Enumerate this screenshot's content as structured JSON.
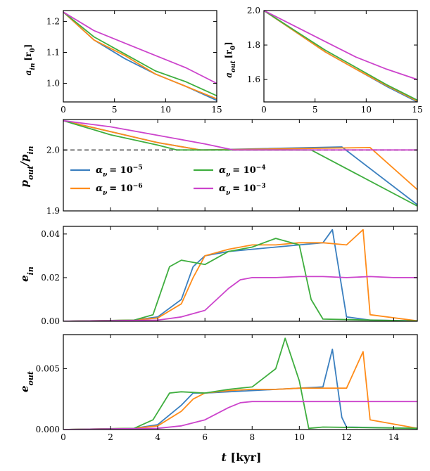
{
  "colors": {
    "a5": "#3a7fbf",
    "a6": "#ff8c1a",
    "a4": "#3fae3f",
    "a3": "#cc44cc",
    "ref": "#777777"
  },
  "chart_data": [
    {
      "id": "p1",
      "type": "line",
      "ylabel": "a_in [r_0]",
      "ylabel_main": "a",
      "ylabel_sub": "in",
      "ylabel_unit": "[r",
      "xlim": [
        0,
        15
      ],
      "ylim": [
        0.94,
        1.235
      ],
      "xticks": [
        "0",
        "5",
        "10",
        "15"
      ],
      "yticks": [
        "1.2",
        "1.1",
        "1.0"
      ],
      "series": [
        {
          "name": "α=1e-5",
          "color": "a5",
          "x": [
            0,
            3,
            6,
            9,
            12,
            15
          ],
          "y": [
            1.23,
            1.14,
            1.08,
            1.03,
            0.99,
            0.945
          ]
        },
        {
          "name": "α=1e-6",
          "color": "a6",
          "x": [
            0,
            3,
            6,
            9,
            12,
            15
          ],
          "y": [
            1.23,
            1.14,
            1.09,
            1.03,
            0.99,
            0.95
          ]
        },
        {
          "name": "α=1e-4",
          "color": "a4",
          "x": [
            0,
            3,
            6,
            9,
            12,
            15
          ],
          "y": [
            1.23,
            1.15,
            1.095,
            1.04,
            1.005,
            0.96
          ]
        },
        {
          "name": "α=1e-3",
          "color": "a3",
          "x": [
            0,
            3,
            6,
            9,
            12,
            15
          ],
          "y": [
            1.23,
            1.17,
            1.13,
            1.09,
            1.05,
            1.0
          ]
        }
      ]
    },
    {
      "id": "p2",
      "type": "line",
      "ylabel": "a_out [r_0]",
      "ylabel_main": "a",
      "ylabel_sub": "out",
      "ylabel_unit": "[r",
      "xlim": [
        0,
        15
      ],
      "ylim": [
        1.47,
        2.0
      ],
      "xticks": [
        "0",
        "5",
        "10",
        "15"
      ],
      "yticks": [
        "2.0",
        "1.8",
        "1.6"
      ],
      "series": [
        {
          "name": "α=1e-5",
          "color": "a5",
          "x": [
            0,
            3,
            6,
            9,
            12,
            15
          ],
          "y": [
            2.0,
            1.88,
            1.76,
            1.66,
            1.56,
            1.47
          ]
        },
        {
          "name": "α=1e-6",
          "color": "a6",
          "x": [
            0,
            3,
            6,
            9,
            12,
            15
          ],
          "y": [
            2.0,
            1.88,
            1.76,
            1.66,
            1.565,
            1.475
          ]
        },
        {
          "name": "α=1e-4",
          "color": "a4",
          "x": [
            0,
            3,
            6,
            9,
            12,
            15
          ],
          "y": [
            2.0,
            1.885,
            1.77,
            1.67,
            1.57,
            1.48
          ]
        },
        {
          "name": "α=1e-3",
          "color": "a3",
          "x": [
            0,
            3,
            6,
            9,
            12,
            15
          ],
          "y": [
            2.0,
            1.91,
            1.82,
            1.73,
            1.66,
            1.6
          ]
        }
      ]
    },
    {
      "id": "p3",
      "type": "line",
      "ylabel": "p_out/p_in",
      "ylabel_main": "p",
      "ylabel_sub": "out",
      "ylabel_main2": "/p",
      "ylabel_sub2": "in",
      "xlim": [
        0,
        15
      ],
      "ylim": [
        1.9,
        2.05
      ],
      "yticks": [
        "2.0",
        "1.9"
      ],
      "reference_line": 2.0,
      "legend": {
        "location": "lower-left",
        "entries": [
          {
            "color": "a5",
            "label": "α",
            "sub": "ν",
            "eq": "= 10",
            "exp": "−5"
          },
          {
            "color": "a6",
            "label": "α",
            "sub": "ν",
            "eq": "= 10",
            "exp": "−6"
          },
          {
            "color": "a4",
            "label": "α",
            "sub": "ν",
            "eq": "= 10",
            "exp": "−4"
          },
          {
            "color": "a3",
            "label": "α",
            "sub": "ν",
            "eq": "= 10",
            "exp": "−3"
          }
        ]
      },
      "series": [
        {
          "name": "α=1e-5",
          "color": "a5",
          "x": [
            0,
            2,
            4,
            5.8,
            6,
            11.8,
            15
          ],
          "y": [
            2.048,
            2.03,
            2.012,
            2.0,
            2.0,
            2.005,
            1.91
          ]
        },
        {
          "name": "α=1e-6",
          "color": "a6",
          "x": [
            0,
            2,
            4,
            5.8,
            6,
            13,
            15
          ],
          "y": [
            2.048,
            2.03,
            2.012,
            2.0,
            2.0,
            2.004,
            1.935
          ]
        },
        {
          "name": "α=1e-4",
          "color": "a4",
          "x": [
            0,
            2,
            4,
            4.8,
            5,
            10.5,
            15
          ],
          "y": [
            2.048,
            2.025,
            2.008,
            2.0,
            2.0,
            2.0,
            1.908
          ]
        },
        {
          "name": "α=1e-3",
          "color": "a3",
          "x": [
            0,
            2,
            4,
            6,
            7.2,
            15
          ],
          "y": [
            2.048,
            2.038,
            2.024,
            2.01,
            2.0,
            2.0
          ]
        }
      ]
    },
    {
      "id": "p4",
      "type": "line",
      "ylabel": "e_in",
      "ylabel_main": "e",
      "ylabel_sub": "in",
      "xlim": [
        0,
        15
      ],
      "ylim": [
        0,
        0.0435
      ],
      "yticks": [
        "0.04",
        "0.02",
        "0.00"
      ],
      "series": [
        {
          "name": "α=1e-5",
          "color": "a5",
          "x": [
            0,
            3,
            4,
            5,
            5.5,
            6,
            7,
            8,
            9,
            10,
            11,
            11.4,
            12,
            13,
            15
          ],
          "y": [
            0,
            0.0005,
            0.002,
            0.01,
            0.025,
            0.03,
            0.032,
            0.033,
            0.034,
            0.035,
            0.036,
            0.042,
            0.002,
            0.0005,
            0.0002
          ]
        },
        {
          "name": "α=1e-6",
          "color": "a6",
          "x": [
            0,
            3,
            4,
            5,
            5.5,
            6,
            7,
            8,
            9,
            10,
            11,
            12,
            12.7,
            13,
            15
          ],
          "y": [
            0,
            0.0005,
            0.0015,
            0.008,
            0.02,
            0.03,
            0.033,
            0.035,
            0.035,
            0.036,
            0.036,
            0.035,
            0.042,
            0.003,
            0.0002
          ]
        },
        {
          "name": "α=1e-4",
          "color": "a4",
          "x": [
            0,
            3,
            3.8,
            4.5,
            5,
            6,
            7,
            8,
            9,
            10,
            10.5,
            11,
            15
          ],
          "y": [
            0,
            0.0005,
            0.003,
            0.025,
            0.028,
            0.026,
            0.032,
            0.034,
            0.038,
            0.035,
            0.01,
            0.001,
            0.0001
          ]
        },
        {
          "name": "α=1e-3",
          "color": "a3",
          "x": [
            0,
            4,
            5,
            6,
            7,
            7.5,
            8,
            9,
            10,
            11,
            12,
            13,
            14,
            15
          ],
          "y": [
            0,
            0.0005,
            0.002,
            0.005,
            0.015,
            0.019,
            0.02,
            0.02,
            0.0205,
            0.0205,
            0.02,
            0.0205,
            0.02,
            0.02
          ]
        }
      ]
    },
    {
      "id": "p5",
      "type": "line",
      "xlabel": "t [kyr]",
      "xlabel_main": "t",
      "xlabel_unit": " [kyr]",
      "ylabel": "e_out",
      "ylabel_main": "e",
      "ylabel_sub": "out",
      "xlim": [
        0,
        15
      ],
      "ylim": [
        0,
        0.0078
      ],
      "xticks": [
        "0",
        "2",
        "4",
        "6",
        "8",
        "10",
        "12",
        "14"
      ],
      "yticks": [
        "0.005",
        "0.000"
      ],
      "series": [
        {
          "name": "α=1e-5",
          "color": "a5",
          "x": [
            0,
            3,
            4,
            5,
            5.5,
            6,
            7,
            8,
            9,
            10,
            11,
            11.4,
            11.8,
            12,
            15
          ],
          "y": [
            0,
            0.0001,
            0.0004,
            0.002,
            0.003,
            0.003,
            0.0031,
            0.0032,
            0.0033,
            0.0034,
            0.0035,
            0.0066,
            0.001,
            0.0002,
            0.0001
          ]
        },
        {
          "name": "α=1e-6",
          "color": "a6",
          "x": [
            0,
            3,
            4,
            5,
            5.5,
            6,
            7,
            8,
            9,
            10,
            11,
            12,
            12.7,
            13,
            15
          ],
          "y": [
            0,
            0.0001,
            0.0003,
            0.0015,
            0.0025,
            0.003,
            0.0032,
            0.0033,
            0.0033,
            0.0034,
            0.0034,
            0.0034,
            0.0064,
            0.0008,
            0.0001
          ]
        },
        {
          "name": "α=1e-4",
          "color": "a4",
          "x": [
            0,
            3,
            3.8,
            4.5,
            5,
            6,
            7,
            8,
            9,
            9.4,
            10,
            10.4,
            11,
            15
          ],
          "y": [
            0,
            0.0001,
            0.0008,
            0.003,
            0.0031,
            0.003,
            0.0033,
            0.0035,
            0.005,
            0.0075,
            0.004,
            0.0001,
            0.0002,
            0.0001
          ]
        },
        {
          "name": "α=1e-3",
          "color": "a3",
          "x": [
            0,
            4,
            5,
            6,
            7,
            7.5,
            8,
            9,
            10,
            11,
            12,
            13,
            14,
            15
          ],
          "y": [
            0,
            0.0001,
            0.0003,
            0.0008,
            0.0018,
            0.0022,
            0.0023,
            0.0023,
            0.0023,
            0.0023,
            0.0023,
            0.0023,
            0.0023,
            0.0023
          ]
        }
      ]
    }
  ]
}
